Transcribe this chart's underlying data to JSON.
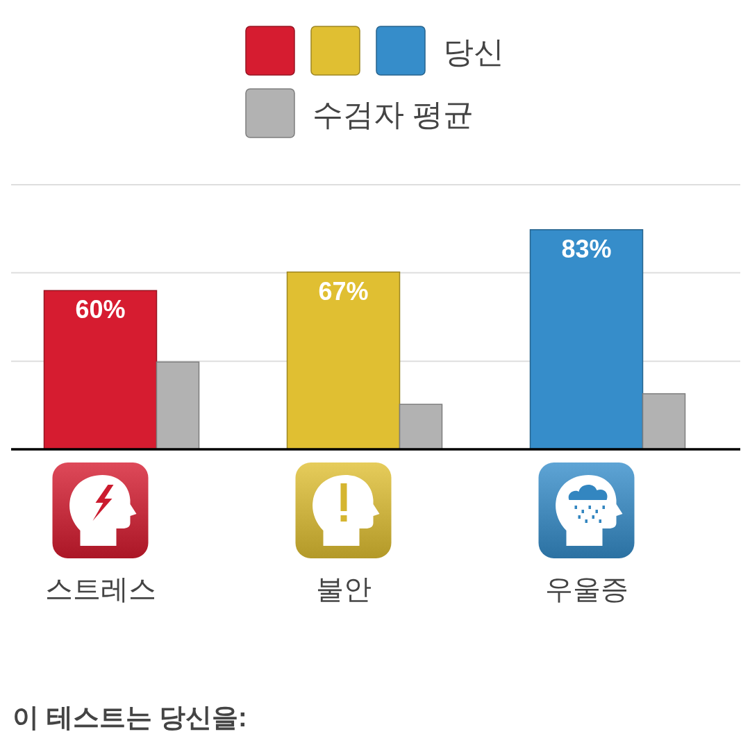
{
  "chart_data": {
    "type": "bar",
    "categories": [
      "스트레스",
      "불안",
      "우울증"
    ],
    "series": [
      {
        "name": "당신",
        "colors": [
          "#d61c30",
          "#e0bf32",
          "#368dca"
        ],
        "values": [
          60,
          67,
          83
        ],
        "value_labels": [
          "60%",
          "67%",
          "83%"
        ]
      },
      {
        "name": "수검자 평균",
        "color": "#b2b2b2",
        "values": [
          33,
          17,
          21
        ]
      }
    ],
    "ylim": [
      0,
      100
    ],
    "yticks": [
      {
        "value": 33.3,
        "label": null
      },
      {
        "value": 66.7,
        "label": null
      },
      {
        "value": 100,
        "label": null
      }
    ],
    "grid": "y",
    "legend": "top",
    "tick_labels": "x",
    "annotations": [
      "이 테스트는 당신을:"
    ]
  }
}
